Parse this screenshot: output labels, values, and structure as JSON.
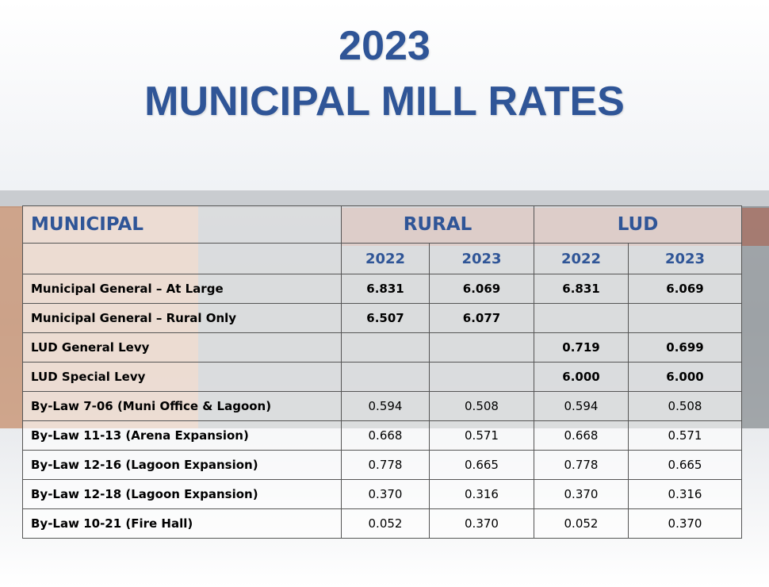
{
  "header": {
    "year": "2023",
    "title": "MUNICIPAL MILL RATES"
  },
  "table": {
    "groups": [
      "MUNICIPAL",
      "RURAL",
      "LUD"
    ],
    "years": [
      "2022",
      "2023",
      "2022",
      "2023"
    ],
    "rows": [
      [
        "Municipal General – At Large",
        "6.831",
        "6.069",
        "6.831",
        "6.069"
      ],
      [
        "Municipal General – Rural Only",
        "6.507",
        "6.077",
        null,
        null
      ],
      [
        "LUD General Levy",
        null,
        null,
        "0.719",
        "0.699"
      ],
      [
        "LUD Special Levy",
        null,
        null,
        "6.000",
        "6.000"
      ],
      [
        "By-Law 7-06 (Muni Office & Lagoon)",
        "0.594",
        "0.508",
        "0.594",
        "0.508"
      ],
      [
        "By-Law 11-13 (Arena Expansion)",
        "0.668",
        "0.571",
        "0.668",
        "0.571"
      ],
      [
        "By-Law 12-16 (Lagoon Expansion)",
        "0.778",
        "0.665",
        "0.778",
        "0.665"
      ],
      [
        "By-Law 12-18 (Lagoon Expansion)",
        "0.370",
        "0.316",
        "0.370",
        "0.316"
      ],
      [
        "By-Law 10-21 (Fire Hall)",
        "0.052",
        "0.370",
        "0.052",
        "0.370"
      ]
    ]
  }
}
